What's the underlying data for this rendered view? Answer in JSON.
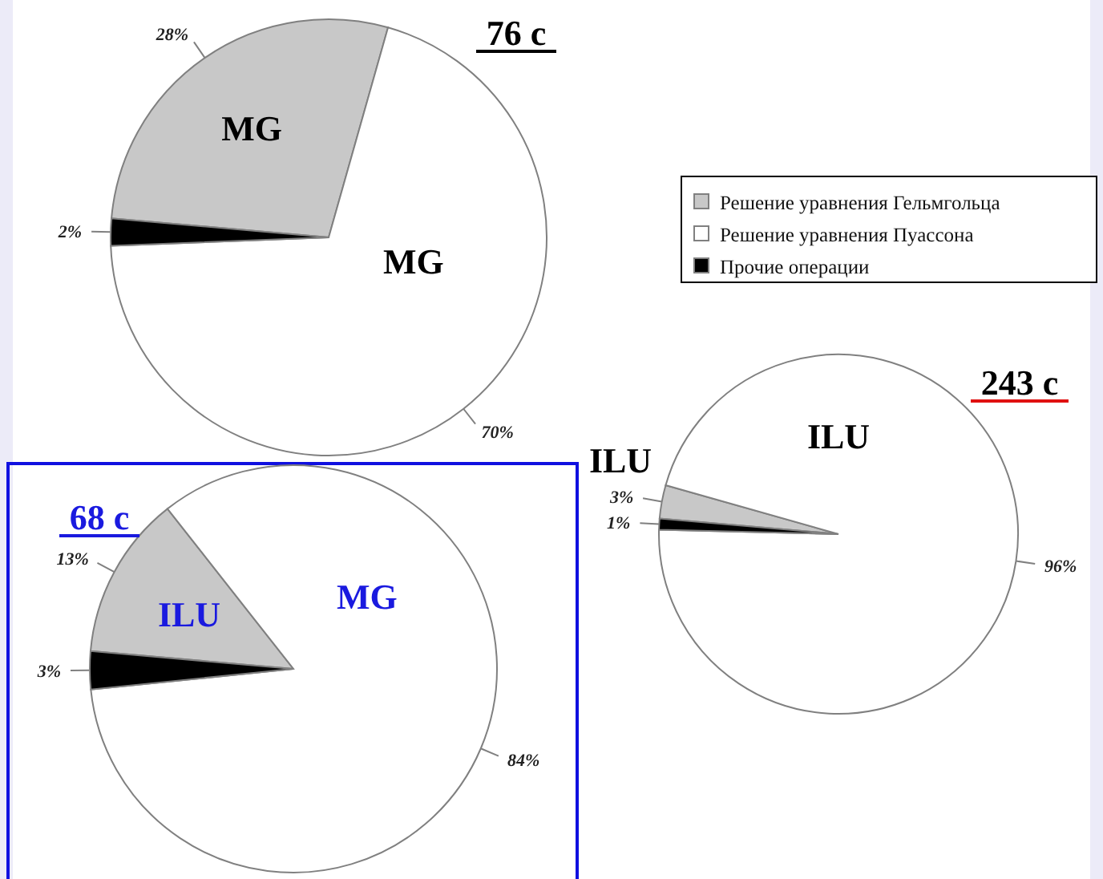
{
  "chart_data": [
    {
      "type": "pie",
      "title": "76 с",
      "categories": [
        "Решение уравнения Гельмгольца",
        "Решение уравнения Пуассона",
        "Прочие операции"
      ],
      "values": [
        28,
        70,
        2
      ],
      "colors": [
        "#c8c8c8",
        "#ffffff",
        "#000000"
      ],
      "value_labels": [
        "28%",
        "70%",
        "2%"
      ],
      "legend": "right",
      "annotations": [
        "MG",
        "MG"
      ]
    },
    {
      "type": "pie",
      "title": "68 с",
      "categories": [
        null,
        null,
        null
      ],
      "values": [
        13,
        84,
        3
      ],
      "colors": [
        "#c8c8c8",
        "#ffffff",
        "#000000"
      ],
      "value_labels": [
        "13%",
        "84%",
        "3%"
      ],
      "annotations": [
        "ILU",
        "MG"
      ]
    },
    {
      "type": "pie",
      "title": "243 с",
      "categories": [
        null,
        null,
        null
      ],
      "values": [
        3,
        96,
        1
      ],
      "colors": [
        "#c8c8c8",
        "#ffffff",
        "#000000"
      ],
      "value_labels": [
        "3%",
        "96%",
        "1%"
      ],
      "annotations": [
        "ILU",
        "ILU"
      ]
    }
  ]
}
